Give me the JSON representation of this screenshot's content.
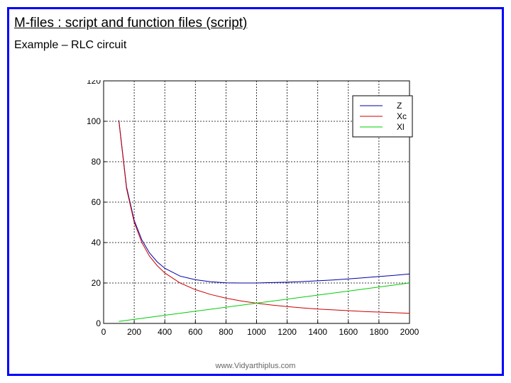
{
  "slide": {
    "title": "M-files : script and function files (script)",
    "subtitle": "Example – RLC circuit",
    "footer": "www.Vidyarthiplus.com",
    "border_color": "#0000ff"
  },
  "chart_data": {
    "type": "line",
    "title": "",
    "xlabel": "",
    "ylabel": "",
    "xlim": [
      0,
      2000
    ],
    "ylim": [
      0,
      120
    ],
    "xticks": [
      "0",
      "200",
      "400",
      "600",
      "800",
      "1000",
      "1200",
      "1400",
      "1600",
      "1800",
      "2000"
    ],
    "yticks": [
      "0",
      "20",
      "40",
      "60",
      "80",
      "100",
      "120"
    ],
    "grid": true,
    "legend_position": "top-right",
    "series": [
      {
        "name": "Z",
        "color": "#0000aa",
        "x": [
          100,
          150,
          200,
          250,
          300,
          350,
          400,
          500,
          600,
          700,
          800,
          900,
          1000,
          1100,
          1200,
          1300,
          1400,
          1500,
          1600,
          1700,
          1800,
          1900,
          2000
        ],
        "y": [
          100.5,
          67.5,
          51.0,
          41.3,
          34.9,
          30.5,
          27.3,
          23.4,
          21.6,
          20.6,
          20.1,
          20.0,
          20.0,
          20.2,
          20.4,
          20.7,
          21.1,
          21.5,
          22.0,
          22.6,
          23.2,
          23.8,
          24.5
        ]
      },
      {
        "name": "Xc",
        "color": "#cc0000",
        "x": [
          100,
          150,
          200,
          250,
          300,
          350,
          400,
          500,
          600,
          700,
          800,
          900,
          1000,
          1100,
          1200,
          1300,
          1400,
          1500,
          1600,
          1700,
          1800,
          1900,
          2000
        ],
        "y": [
          100,
          66.7,
          50,
          40,
          33.3,
          28.6,
          25,
          20,
          16.7,
          14.3,
          12.5,
          11.1,
          10,
          9.1,
          8.3,
          7.7,
          7.1,
          6.7,
          6.3,
          5.9,
          5.6,
          5.3,
          5
        ]
      },
      {
        "name": "Xl",
        "color": "#00cc00",
        "x": [
          100,
          2000
        ],
        "y": [
          1,
          20
        ]
      }
    ]
  }
}
